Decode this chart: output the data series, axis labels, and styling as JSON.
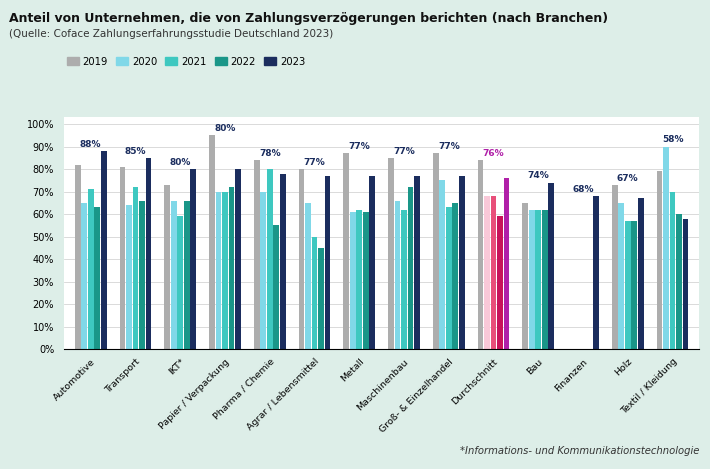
{
  "title": "Anteil von Unternehmen, die von Zahlungsverzögerungen berichten (nach Branchen)",
  "subtitle": "(Quelle: Coface Zahlungserfahrungsstudie Deutschland 2023)",
  "footnote": "*Informations- und Kommunikationstechnologie",
  "categories": [
    "Automotive",
    "Transport",
    "IKT*",
    "Papier / Verpackung",
    "Pharma / Chemie",
    "Agrar / Lebensmittel",
    "Metall",
    "Maschinenbau",
    "Groß- & Einzelhandel",
    "Durchschnitt",
    "Bau",
    "Finanzen",
    "Holz",
    "Textil / Kleidung"
  ],
  "years": [
    "2019",
    "2020",
    "2021",
    "2022",
    "2023"
  ],
  "highlight_idx": 9,
  "data": {
    "2019": [
      82,
      81,
      73,
      95,
      84,
      80,
      87,
      85,
      87,
      84,
      65,
      0,
      73,
      79
    ],
    "2020": [
      65,
      64,
      66,
      70,
      70,
      65,
      61,
      66,
      75,
      68,
      62,
      0,
      65,
      90
    ],
    "2021": [
      71,
      72,
      59,
      70,
      80,
      50,
      62,
      62,
      63,
      68,
      62,
      0,
      57,
      70
    ],
    "2022": [
      63,
      66,
      66,
      72,
      55,
      45,
      61,
      72,
      65,
      59,
      62,
      0,
      57,
      60
    ],
    "2023": [
      88,
      85,
      80,
      80,
      78,
      77,
      77,
      77,
      77,
      76,
      74,
      68,
      67,
      58
    ]
  },
  "label_values": [
    88,
    85,
    80,
    80,
    78,
    77,
    77,
    77,
    77,
    76,
    74,
    68,
    67,
    58
  ],
  "normal_colors": [
    "#adadad",
    "#80d8e8",
    "#3ec8c0",
    "#1a9688",
    "#1b2d5e"
  ],
  "highlight_colors": [
    "#adadad",
    "#f9c8d8",
    "#e8507a",
    "#c8145a",
    "#b020a8"
  ],
  "background_color": "#ddeee8",
  "chart_bg": "#ffffff",
  "label_color_normal": "#1b2d5e",
  "label_color_highlight": "#b020a8",
  "ytick_vals": [
    0,
    10,
    20,
    30,
    40,
    50,
    60,
    70,
    80,
    90,
    100
  ],
  "ylim": [
    0,
    103
  ]
}
